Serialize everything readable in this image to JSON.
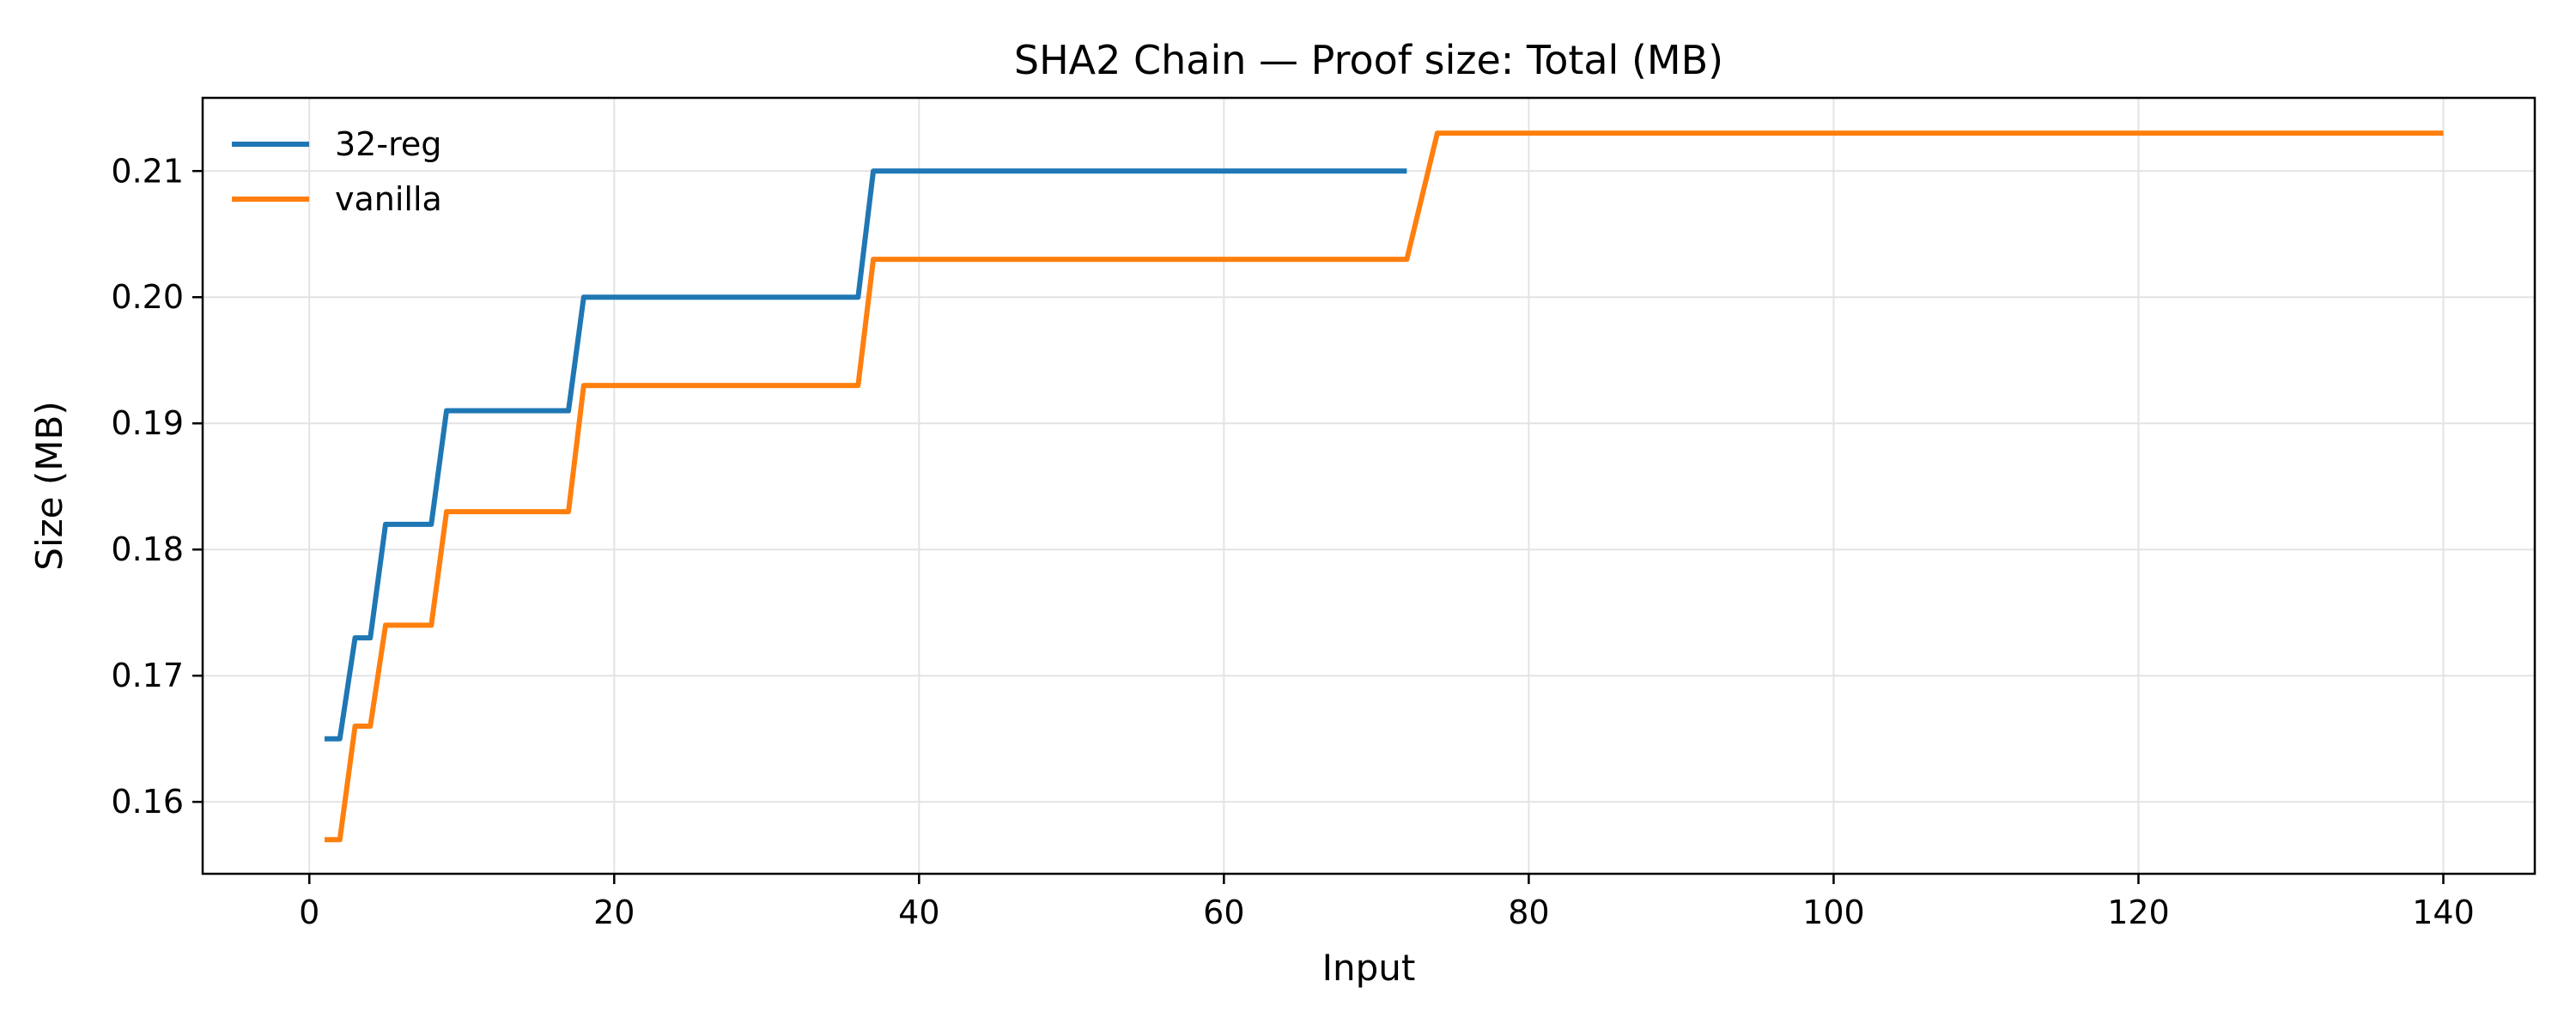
{
  "chart_data": {
    "type": "line",
    "title": "SHA2 Chain — Proof size: Total (MB)",
    "xlabel": "Input",
    "ylabel": "Size (MB)",
    "xlim": [
      -7.0,
      146.0
    ],
    "ylim": [
      0.1543,
      0.2158
    ],
    "xticks": [
      0,
      20,
      40,
      60,
      80,
      100,
      120,
      140
    ],
    "xtick_labels": [
      "0",
      "20",
      "40",
      "60",
      "80",
      "100",
      "120",
      "140"
    ],
    "yticks": [
      0.16,
      0.17,
      0.18,
      0.19,
      0.2,
      0.21
    ],
    "ytick_labels": [
      "0.16",
      "0.17",
      "0.18",
      "0.19",
      "0.20",
      "0.21"
    ],
    "grid": true,
    "legend_position": "top-left",
    "series": [
      {
        "name": "32-reg",
        "color": "#1f77b4",
        "x": [
          1,
          2,
          3,
          4,
          5,
          8,
          9,
          17,
          18,
          36,
          37,
          72
        ],
        "y": [
          0.165,
          0.165,
          0.173,
          0.173,
          0.182,
          0.182,
          0.191,
          0.191,
          0.2,
          0.2,
          0.21,
          0.21
        ]
      },
      {
        "name": "vanilla",
        "color": "#ff7f0e",
        "x": [
          1,
          2,
          3,
          4,
          5,
          8,
          9,
          17,
          18,
          36,
          37,
          72,
          74,
          140
        ],
        "y": [
          0.157,
          0.157,
          0.166,
          0.166,
          0.174,
          0.174,
          0.183,
          0.183,
          0.193,
          0.193,
          0.203,
          0.203,
          0.213,
          0.213
        ]
      }
    ]
  }
}
